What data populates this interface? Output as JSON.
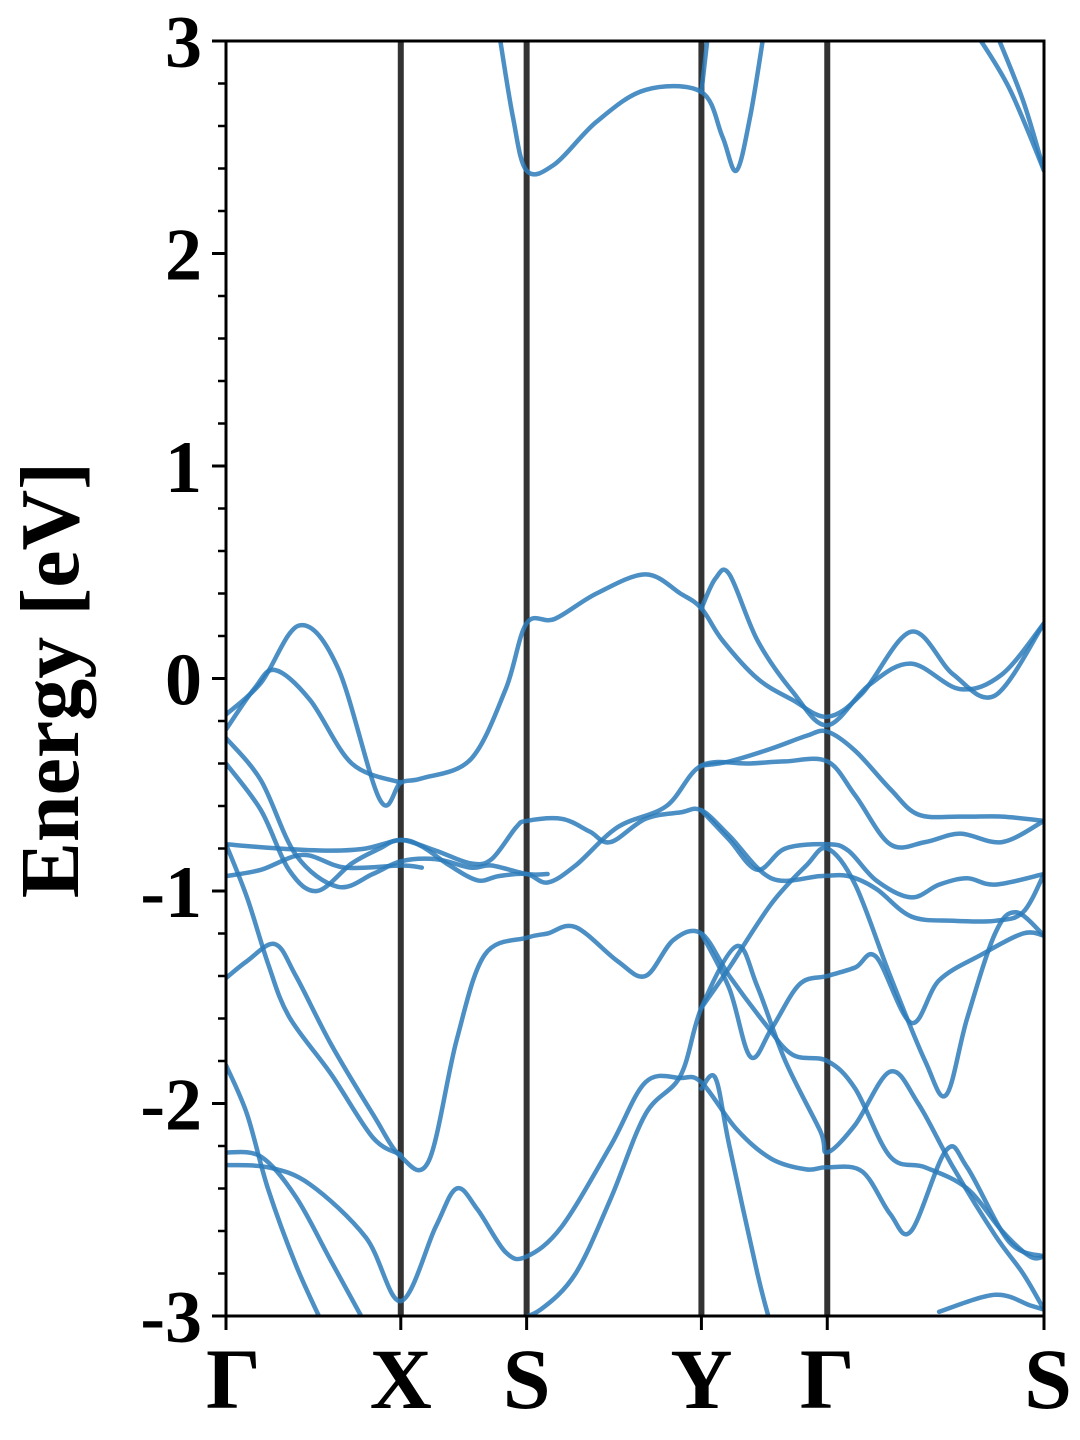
{
  "chart_data": {
    "type": "line",
    "title": "",
    "xlabel": "",
    "ylabel": "Energy [eV]",
    "ylim": [
      -3,
      3
    ],
    "yticks": [
      "-3",
      "-2",
      "-1",
      "0",
      "1",
      "2",
      "3"
    ],
    "yminor_step": 0.2,
    "high_symmetry_points": [
      {
        "label": "Γ",
        "k": 0
      },
      {
        "label": "X",
        "k": 0.5
      },
      {
        "label": "S",
        "k": 0.86
      },
      {
        "label": "Y",
        "k": 1.36
      },
      {
        "label": "Γ",
        "k": 1.72
      },
      {
        "label": "S",
        "k": 2.34
      }
    ],
    "grid": false,
    "colors": {
      "band": "#2b7bba",
      "kline": "#333333",
      "axis": "#000000"
    },
    "series": [
      {
        "values": [
          [
            0,
            -0.17
          ],
          [
            0.1,
            -0.02
          ],
          [
            0.21,
            0.25
          ],
          [
            0.32,
            0.05
          ],
          [
            0.44,
            -0.57
          ],
          [
            0.5,
            -0.49
          ],
          [
            0.56,
            -0.47
          ],
          [
            0.7,
            -0.38
          ],
          [
            0.8,
            -0.05
          ],
          [
            0.86,
            0.26
          ],
          [
            0.94,
            0.28
          ],
          [
            1.06,
            0.4
          ],
          [
            1.2,
            0.49
          ],
          [
            1.3,
            0.4
          ],
          [
            1.36,
            0.33
          ],
          [
            1.42,
            0.18
          ],
          [
            1.52,
            0.0
          ],
          [
            1.62,
            -0.1
          ],
          [
            1.72,
            -0.18
          ],
          [
            1.82,
            -0.07
          ],
          [
            1.96,
            0.22
          ],
          [
            2.08,
            0.02
          ],
          [
            2.2,
            -0.08
          ],
          [
            2.34,
            0.26
          ]
        ]
      },
      {
        "values": [
          [
            0,
            -0.24
          ],
          [
            0.08,
            -0.05
          ],
          [
            0.14,
            0.04
          ],
          [
            0.24,
            -0.1
          ],
          [
            0.36,
            -0.4
          ],
          [
            0.5,
            -0.49
          ]
        ]
      },
      {
        "values": [
          [
            1.36,
            0.33
          ],
          [
            1.4,
            0.47
          ],
          [
            1.44,
            0.49
          ],
          [
            1.52,
            0.18
          ],
          [
            1.62,
            -0.06
          ],
          [
            1.72,
            -0.22
          ],
          [
            1.84,
            -0.03
          ],
          [
            1.96,
            0.07
          ],
          [
            2.1,
            -0.05
          ],
          [
            2.22,
            0.02
          ],
          [
            2.34,
            0.26
          ]
        ]
      },
      {
        "values": [
          [
            0,
            -0.28
          ],
          [
            0.1,
            -0.48
          ],
          [
            0.2,
            -0.83
          ],
          [
            0.32,
            -0.98
          ],
          [
            0.42,
            -0.92
          ],
          [
            0.5,
            -0.86
          ],
          [
            0.6,
            -0.85
          ],
          [
            0.7,
            -0.89
          ],
          [
            0.76,
            -0.88
          ],
          [
            0.86,
            -0.92
          ],
          [
            0.92,
            -0.92
          ]
        ]
      },
      {
        "values": [
          [
            0,
            -0.4
          ],
          [
            0.1,
            -0.62
          ],
          [
            0.18,
            -0.9
          ],
          [
            0.26,
            -1.0
          ],
          [
            0.36,
            -0.87
          ],
          [
            0.44,
            -0.8
          ],
          [
            0.5,
            -0.76
          ],
          [
            0.6,
            -0.81
          ],
          [
            0.7,
            -0.87
          ],
          [
            0.76,
            -0.85
          ],
          [
            0.83,
            -0.7
          ],
          [
            0.86,
            -0.67
          ],
          [
            0.96,
            -0.66
          ],
          [
            1.04,
            -0.72
          ],
          [
            1.1,
            -0.77
          ],
          [
            1.2,
            -0.66
          ],
          [
            1.3,
            -0.63
          ],
          [
            1.36,
            -0.62
          ],
          [
            1.44,
            -0.74
          ],
          [
            1.56,
            -0.94
          ],
          [
            1.7,
            -0.93
          ],
          [
            1.78,
            -0.93
          ],
          [
            1.86,
            -0.99
          ],
          [
            1.96,
            -1.12
          ],
          [
            2.08,
            -1.14
          ],
          [
            2.2,
            -1.14
          ],
          [
            2.28,
            -1.1
          ],
          [
            2.34,
            -0.92
          ]
        ]
      },
      {
        "values": [
          [
            0,
            -0.78
          ],
          [
            0.15,
            -0.8
          ],
          [
            0.3,
            -0.81
          ],
          [
            0.4,
            -0.8
          ],
          [
            0.5,
            -0.76
          ],
          [
            0.56,
            -0.79
          ],
          [
            0.64,
            -0.88
          ],
          [
            0.72,
            -0.95
          ],
          [
            0.78,
            -0.93
          ],
          [
            0.86,
            -0.92
          ],
          [
            0.92,
            -0.96
          ],
          [
            1.0,
            -0.88
          ],
          [
            1.12,
            -0.7
          ],
          [
            1.26,
            -0.6
          ],
          [
            1.36,
            -0.41
          ],
          [
            1.5,
            -0.4
          ],
          [
            1.6,
            -0.39
          ],
          [
            1.72,
            -0.39
          ],
          [
            1.8,
            -0.55
          ],
          [
            1.9,
            -0.78
          ],
          [
            2.0,
            -0.77
          ],
          [
            2.1,
            -0.73
          ],
          [
            2.22,
            -0.77
          ],
          [
            2.34,
            -0.67
          ]
        ]
      },
      {
        "values": [
          [
            0,
            -0.93
          ],
          [
            0.1,
            -0.9
          ],
          [
            0.22,
            -0.83
          ],
          [
            0.34,
            -0.89
          ],
          [
            0.5,
            -0.88
          ],
          [
            0.56,
            -0.89
          ]
        ]
      },
      {
        "values": [
          [
            1.36,
            -0.62
          ],
          [
            1.44,
            -0.76
          ],
          [
            1.52,
            -0.9
          ],
          [
            1.6,
            -0.8
          ],
          [
            1.72,
            -0.78
          ],
          [
            1.78,
            -0.81
          ],
          [
            1.86,
            -0.95
          ],
          [
            1.96,
            -1.03
          ],
          [
            2.04,
            -0.97
          ],
          [
            2.12,
            -0.94
          ],
          [
            2.2,
            -0.97
          ],
          [
            2.34,
            -0.92
          ]
        ]
      },
      {
        "values": [
          [
            1.36,
            -0.41
          ],
          [
            1.44,
            -0.39
          ],
          [
            1.56,
            -0.33
          ],
          [
            1.66,
            -0.27
          ],
          [
            1.72,
            -0.25
          ],
          [
            1.8,
            -0.34
          ],
          [
            1.9,
            -0.52
          ],
          [
            1.98,
            -0.64
          ],
          [
            2.1,
            -0.65
          ],
          [
            2.22,
            -0.65
          ],
          [
            2.34,
            -0.67
          ]
        ]
      },
      {
        "values": [
          [
            0,
            -1.41
          ],
          [
            0.06,
            -1.33
          ],
          [
            0.14,
            -1.25
          ],
          [
            0.2,
            -1.4
          ],
          [
            0.3,
            -1.72
          ],
          [
            0.42,
            -2.05
          ],
          [
            0.5,
            -2.25
          ],
          [
            0.58,
            -2.27
          ],
          [
            0.66,
            -1.7
          ],
          [
            0.74,
            -1.3
          ],
          [
            0.86,
            -1.22
          ],
          [
            0.92,
            -1.2
          ],
          [
            1.0,
            -1.17
          ],
          [
            1.12,
            -1.33
          ],
          [
            1.2,
            -1.4
          ],
          [
            1.28,
            -1.23
          ],
          [
            1.36,
            -1.2
          ],
          [
            1.44,
            -1.4
          ],
          [
            1.54,
            -1.62
          ],
          [
            1.62,
            -1.77
          ],
          [
            1.72,
            -1.8
          ],
          [
            1.8,
            -1.93
          ],
          [
            1.9,
            -2.25
          ],
          [
            2.0,
            -2.3
          ],
          [
            2.12,
            -2.4
          ],
          [
            2.22,
            -2.6
          ],
          [
            2.3,
            -2.72
          ],
          [
            2.34,
            -2.72
          ]
        ]
      },
      {
        "values": [
          [
            0,
            -0.78
          ],
          [
            0.06,
            -1.03
          ],
          [
            0.12,
            -1.34
          ],
          [
            0.18,
            -1.59
          ],
          [
            0.3,
            -1.86
          ],
          [
            0.42,
            -2.16
          ],
          [
            0.5,
            -2.24
          ]
        ]
      },
      {
        "values": [
          [
            1.36,
            -1.2
          ],
          [
            1.44,
            -1.46
          ],
          [
            1.5,
            -1.78
          ],
          [
            1.56,
            -1.65
          ],
          [
            1.64,
            -1.44
          ],
          [
            1.72,
            -1.4
          ],
          [
            1.8,
            -1.36
          ],
          [
            1.86,
            -1.31
          ],
          [
            1.96,
            -1.62
          ],
          [
            2.04,
            -1.42
          ],
          [
            2.16,
            -1.3
          ],
          [
            2.28,
            -1.2
          ],
          [
            2.34,
            -1.21
          ]
        ]
      },
      {
        "values": [
          [
            0,
            -1.82
          ],
          [
            0.06,
            -2.05
          ],
          [
            0.12,
            -2.4
          ],
          [
            0.2,
            -2.76
          ],
          [
            0.28,
            -3.05
          ]
        ]
      },
      {
        "values": [
          [
            0,
            -2.23
          ],
          [
            0.1,
            -2.25
          ],
          [
            0.2,
            -2.44
          ],
          [
            0.3,
            -2.74
          ],
          [
            0.4,
            -3.04
          ]
        ]
      },
      {
        "values": [
          [
            0,
            -2.29
          ],
          [
            0.12,
            -2.3
          ],
          [
            0.24,
            -2.38
          ],
          [
            0.4,
            -2.63
          ],
          [
            0.5,
            -2.93
          ],
          [
            0.6,
            -2.58
          ],
          [
            0.66,
            -2.4
          ],
          [
            0.72,
            -2.5
          ],
          [
            0.8,
            -2.7
          ],
          [
            0.86,
            -2.72
          ],
          [
            0.96,
            -2.58
          ],
          [
            1.1,
            -2.2
          ],
          [
            1.2,
            -1.9
          ],
          [
            1.3,
            -1.88
          ],
          [
            1.36,
            -1.9
          ],
          [
            1.46,
            -2.12
          ],
          [
            1.56,
            -2.26
          ],
          [
            1.66,
            -2.31
          ],
          [
            1.72,
            -2.3
          ],
          [
            1.82,
            -2.32
          ],
          [
            1.9,
            -2.52
          ],
          [
            1.96,
            -2.6
          ],
          [
            2.06,
            -2.22
          ],
          [
            2.12,
            -2.3
          ],
          [
            2.24,
            -2.65
          ],
          [
            2.34,
            -2.72
          ]
        ]
      },
      {
        "values": [
          [
            0.82,
            -3.02
          ],
          [
            0.9,
            -2.97
          ],
          [
            1.0,
            -2.8
          ],
          [
            1.1,
            -2.45
          ],
          [
            1.2,
            -2.05
          ],
          [
            1.3,
            -1.87
          ],
          [
            1.36,
            -1.55
          ],
          [
            1.46,
            -1.26
          ],
          [
            1.52,
            -1.45
          ],
          [
            1.6,
            -1.8
          ],
          [
            1.7,
            -2.13
          ],
          [
            1.72,
            -2.23
          ],
          [
            1.8,
            -2.1
          ],
          [
            1.9,
            -1.85
          ],
          [
            1.98,
            -2.0
          ],
          [
            2.08,
            -2.3
          ],
          [
            2.2,
            -2.62
          ],
          [
            2.28,
            -2.8
          ],
          [
            2.34,
            -2.97
          ]
        ]
      },
      {
        "values": [
          [
            1.36,
            -1.55
          ],
          [
            1.44,
            -1.36
          ],
          [
            1.56,
            -1.06
          ],
          [
            1.66,
            -0.88
          ],
          [
            1.72,
            -0.8
          ],
          [
            1.8,
            -0.97
          ],
          [
            1.9,
            -1.4
          ],
          [
            2.0,
            -1.8
          ],
          [
            2.06,
            -1.96
          ],
          [
            2.12,
            -1.6
          ],
          [
            2.2,
            -1.2
          ],
          [
            2.26,
            -1.1
          ],
          [
            2.34,
            -1.21
          ]
        ]
      },
      {
        "values": [
          [
            1.36,
            -1.93
          ],
          [
            1.4,
            -1.88
          ],
          [
            1.44,
            -2.2
          ],
          [
            1.52,
            -2.8
          ],
          [
            1.56,
            -3.05
          ]
        ]
      },
      {
        "values": [
          [
            2.04,
            -2.98
          ],
          [
            2.2,
            -2.9
          ],
          [
            2.3,
            -2.95
          ],
          [
            2.34,
            -2.97
          ]
        ]
      },
      {
        "values": [
          [
            0.78,
            3.05
          ],
          [
            0.82,
            2.65
          ],
          [
            0.86,
            2.39
          ],
          [
            0.94,
            2.42
          ],
          [
            1.06,
            2.62
          ],
          [
            1.2,
            2.77
          ],
          [
            1.36,
            2.76
          ],
          [
            1.42,
            2.55
          ],
          [
            1.46,
            2.39
          ],
          [
            1.5,
            2.65
          ],
          [
            1.54,
            3.05
          ]
        ]
      },
      {
        "values": [
          [
            1.36,
            2.76
          ],
          [
            1.38,
            3.05
          ]
        ]
      },
      {
        "values": [
          [
            2.14,
            3.05
          ],
          [
            2.24,
            2.78
          ],
          [
            2.34,
            2.39
          ]
        ]
      },
      {
        "values": [
          [
            2.2,
            3.05
          ],
          [
            2.28,
            2.72
          ],
          [
            2.34,
            2.39
          ]
        ]
      }
    ]
  }
}
